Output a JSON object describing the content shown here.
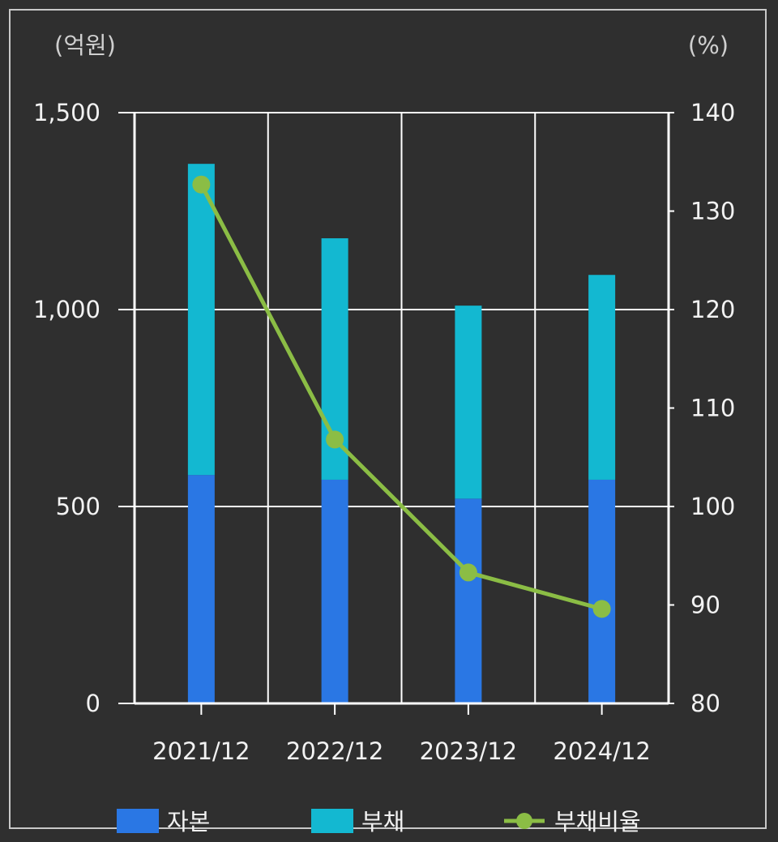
{
  "chart_data": {
    "type": "bar",
    "stacked": true,
    "categories": [
      "2021/12",
      "2022/12",
      "2023/12",
      "2024/12"
    ],
    "series": [
      {
        "name": "자본",
        "axis": "left",
        "type": "bar",
        "color": "#2a77e4",
        "values": [
          580,
          568,
          520,
          568
        ]
      },
      {
        "name": "부채",
        "axis": "left",
        "type": "bar",
        "color": "#13b8d1",
        "values": [
          790,
          613,
          490,
          520
        ]
      },
      {
        "name": "부채비율",
        "axis": "right",
        "type": "line",
        "color": "#8bbd45",
        "values": [
          132.7,
          106.8,
          93.3,
          89.6
        ]
      }
    ],
    "y_left": {
      "unit": "(억원)",
      "min": 0,
      "max": 1500,
      "ticks": [
        0,
        500,
        1000,
        1500
      ],
      "tick_labels": [
        "0",
        "500",
        "1,000",
        "1,500"
      ]
    },
    "y_right": {
      "unit": "(%)",
      "min": 80,
      "max": 140,
      "ticks": [
        80,
        90,
        100,
        110,
        120,
        130,
        140
      ],
      "tick_labels": [
        "80",
        "90",
        "100",
        "110",
        "120",
        "130",
        "140"
      ]
    },
    "grid": true,
    "legend_position": "bottom"
  },
  "colors": {
    "background": "#2f2f2f",
    "grid": "#ffffff",
    "frame": "#c8c8c8"
  }
}
